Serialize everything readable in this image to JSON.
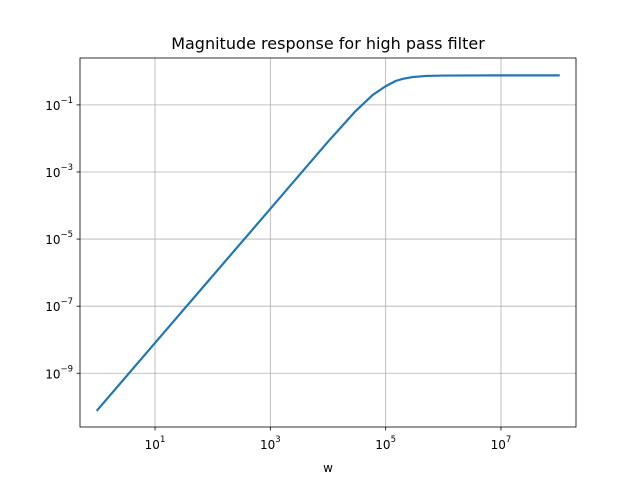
{
  "chart_data": {
    "type": "line",
    "title": "Magnitude response for high pass filter",
    "xlabel": "w",
    "ylabel": "",
    "xscale": "log",
    "yscale": "log",
    "xlim": [
      0.5,
      200000000
    ],
    "ylim": [
      2.5e-11,
      2.5
    ],
    "grid": true,
    "x_ticks": [
      {
        "base": "10",
        "exp": "1",
        "value": 10
      },
      {
        "base": "10",
        "exp": "3",
        "value": 1000
      },
      {
        "base": "10",
        "exp": "5",
        "value": 100000
      },
      {
        "base": "10",
        "exp": "7",
        "value": 10000000
      }
    ],
    "y_ticks": [
      {
        "base": "10",
        "exp": "−1",
        "value": 0.1
      },
      {
        "base": "10",
        "exp": "−3",
        "value": 0.001
      },
      {
        "base": "10",
        "exp": "−5",
        "value": 1e-05
      },
      {
        "base": "10",
        "exp": "−7",
        "value": 1e-07
      },
      {
        "base": "10",
        "exp": "−9",
        "value": 1e-09
      }
    ],
    "series": [
      {
        "color": "#1f77b4",
        "x": [
          1,
          10,
          100,
          1000,
          10000,
          30000,
          60000,
          100000,
          150000,
          200000,
          300000,
          500000,
          1000000,
          10000000,
          100000000
        ],
        "y": [
          8e-11,
          8e-09,
          8e-07,
          8e-05,
          0.008,
          0.065,
          0.2,
          0.36,
          0.52,
          0.6,
          0.68,
          0.73,
          0.75,
          0.76,
          0.76
        ]
      }
    ]
  }
}
